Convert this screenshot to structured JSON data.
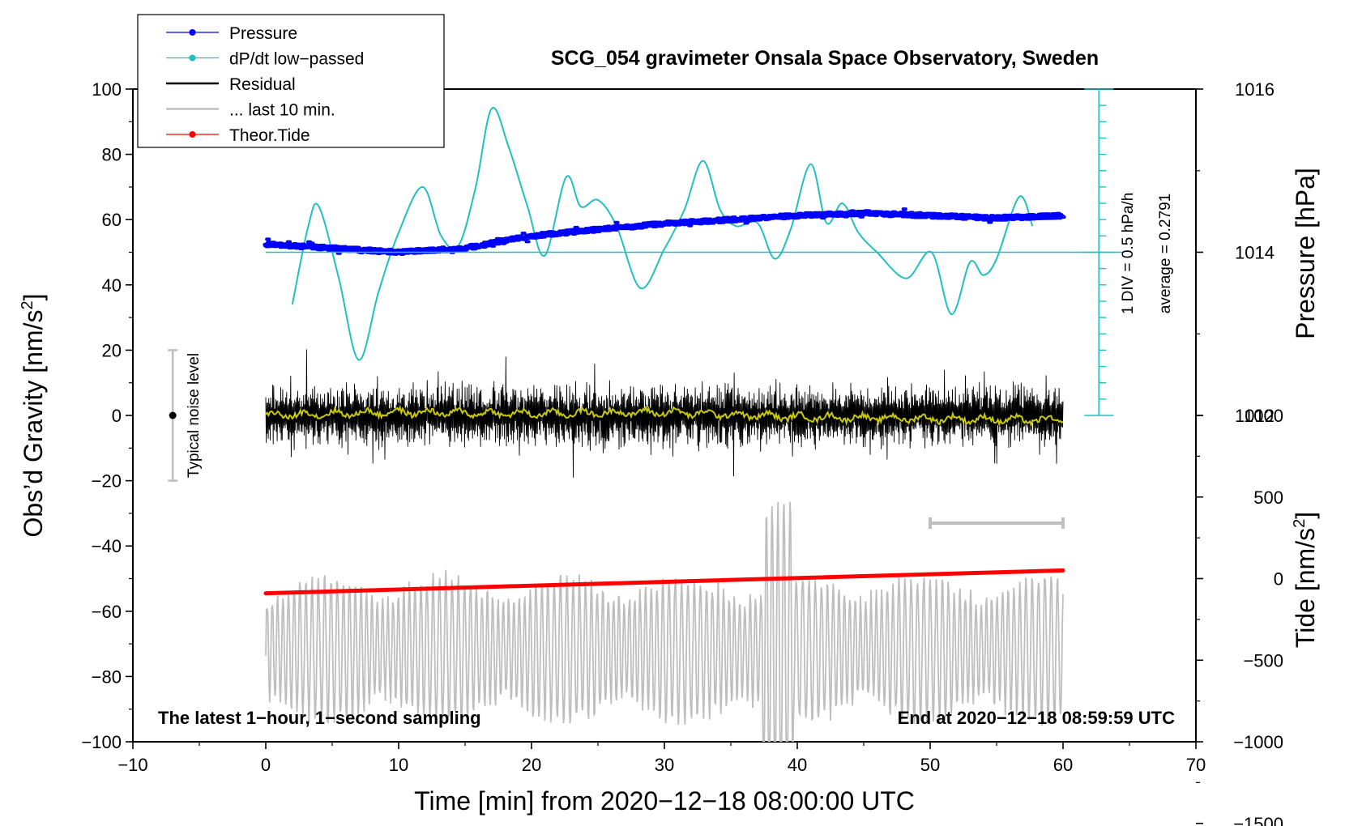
{
  "chart_data": {
    "type": "line",
    "title": "SCG_054 gravimeter Onsala Space Observatory, Sweden",
    "xlabel": "Time [min] from 2020−12−18 08:00:00 UTC",
    "ylabel_left": "Obs’d Gravity [nm/s",
    "ylabel_left_sup": "2",
    "ylabel_left_end": "]",
    "ylabel_right_pressure": "Pressure [hPa]",
    "ylabel_right_tide": "Tide [nm/s",
    "ylabel_right_tide_sup": "2",
    "ylabel_right_tide_end": "]",
    "xlim": [
      -10,
      70
    ],
    "ylim": [
      -100,
      100
    ],
    "x_ticks": [
      "−10",
      "0",
      "10",
      "20",
      "30",
      "40",
      "50",
      "60",
      "70"
    ],
    "y_ticks": [
      "−100",
      "−80",
      "−60",
      "−40",
      "−20",
      "0",
      "20",
      "40",
      "60",
      "80",
      "100"
    ],
    "pressure_ticks": [
      "1012",
      "1014",
      "1016"
    ],
    "tide_ticks": [
      "−1500",
      "−1000",
      "−500",
      "0",
      "500",
      "1000"
    ],
    "pressure_scale_label": "1 DIV = 0.5 hPa/h",
    "pressure_average_label": "average = 0.2791",
    "noise_label": "Typical noise level",
    "footer_left": "The latest 1−hour, 1−second sampling",
    "footer_right": "End at 2020−12−18 08:59:59 UTC",
    "legend": [
      {
        "label": "Pressure",
        "color": "#0000ff",
        "marker": true
      },
      {
        "label": "dP/dt low−passed",
        "color": "#20c0c0",
        "marker": true
      },
      {
        "label": "Residual",
        "color": "#000000",
        "marker": false
      },
      {
        "label": "... last 10 min.",
        "color": "#bebebe",
        "marker": false
      },
      {
        "label": "Theor.Tide",
        "color": "#ff0000",
        "marker": true
      }
    ],
    "series": [
      {
        "name": "Pressure",
        "axis": "pressure_hPa",
        "x": [
          0,
          5,
          10,
          15,
          20,
          25,
          30,
          35,
          40,
          45,
          50,
          55,
          60
        ],
        "values": [
          1014.1,
          1014.05,
          1014.0,
          1014.05,
          1014.2,
          1014.28,
          1014.35,
          1014.4,
          1014.45,
          1014.48,
          1014.45,
          1014.42,
          1014.45
        ]
      },
      {
        "name": "dP/dt low-passed",
        "axis": "left_plot_units",
        "x": [
          2,
          3.2,
          4,
          5.5,
          7,
          8.5,
          10,
          11.8,
          13.2,
          14.5,
          15.8,
          17,
          18.3,
          19.7,
          21,
          22.6,
          23.7,
          25,
          26.4,
          28.2,
          30,
          31.5,
          32.9,
          34.2,
          35.4,
          37,
          38.3,
          39.5,
          41,
          42.2,
          43.4,
          44.6,
          46,
          48.2,
          50.1,
          51.6,
          53,
          54,
          55,
          56.7,
          57.7
        ],
        "values": [
          34,
          58,
          64,
          42,
          17,
          38,
          56,
          70,
          55,
          52,
          70,
          94,
          82,
          64,
          49,
          73,
          64,
          66,
          58,
          39,
          51,
          63,
          78,
          63,
          58,
          59,
          48,
          57,
          77,
          59,
          65,
          56,
          50,
          42,
          50,
          31,
          47,
          43,
          48,
          67,
          58
        ]
      },
      {
        "name": "Residual",
        "axis": "gravity_nm_s2",
        "x": [
          0,
          60
        ],
        "values": [
          0,
          0
        ],
        "range": [
          -27,
          28
        ]
      },
      {
        "name": "Residual (smoothed)",
        "axis": "gravity_nm_s2",
        "x": [
          0,
          10,
          20,
          30,
          40,
          50,
          60
        ],
        "values": [
          0,
          1,
          0.5,
          1,
          -0.5,
          -1,
          -1.5
        ],
        "color": "#c8c810"
      },
      {
        "name": "... last 10 min.",
        "axis": "tide_nm_s2",
        "x": [
          50,
          60
        ],
        "values": [
          -430,
          -430
        ],
        "range": [
          -1200,
          470
        ]
      },
      {
        "name": "Theor.Tide",
        "axis": "tide_nm_s2",
        "x": [
          0,
          60
        ],
        "values": [
          -90,
          50
        ]
      }
    ],
    "noise_level": {
      "x": -7,
      "center": 0,
      "half_range": 20
    }
  }
}
